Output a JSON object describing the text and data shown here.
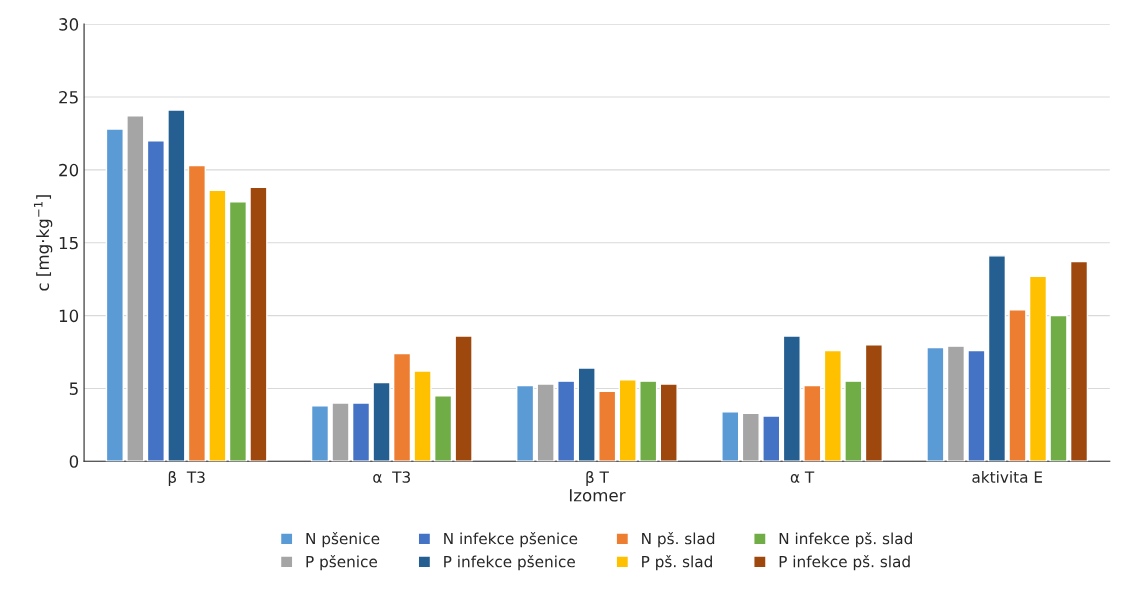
{
  "chart_data": {
    "type": "bar",
    "xlabel": "Izomer",
    "ylabel": "c [mg·kg$^{−1}$]",
    "categories": [
      "β  T3",
      "α  T3",
      "β T",
      "α T",
      "aktivita E"
    ],
    "series": [
      {
        "name": "N pšenice",
        "color": "#5b9bd5",
        "values": [
          22.8,
          3.8,
          5.2,
          3.4,
          7.8
        ]
      },
      {
        "name": "P pšenice",
        "color": "#a5a5a5",
        "values": [
          23.7,
          4.0,
          5.3,
          3.3,
          7.9
        ]
      },
      {
        "name": "N infekce pšenice",
        "color": "#4472c4",
        "values": [
          22.0,
          4.0,
          5.5,
          3.1,
          7.6
        ]
      },
      {
        "name": "P infekce pšenice",
        "color": "#255e91",
        "values": [
          24.1,
          5.4,
          6.4,
          8.6,
          14.1
        ]
      },
      {
        "name": "N pš. slad",
        "color": "#ed7d31",
        "values": [
          20.3,
          7.4,
          4.8,
          5.2,
          10.4
        ]
      },
      {
        "name": "P pš. slad",
        "color": "#ffc000",
        "values": [
          18.6,
          6.2,
          5.6,
          7.6,
          12.7
        ]
      },
      {
        "name": "N infekce pš. slad",
        "color": "#70ad47",
        "values": [
          17.8,
          4.5,
          5.5,
          5.5,
          10.0
        ]
      },
      {
        "name": "P infekce pš. slad",
        "color": "#9e480e",
        "values": [
          18.8,
          8.6,
          5.3,
          8.0,
          13.7
        ]
      }
    ],
    "ylim": [
      0,
      30
    ],
    "yticks": [
      0,
      5,
      10,
      15,
      20,
      25,
      30
    ],
    "grid": "y",
    "legend": "bottom"
  }
}
